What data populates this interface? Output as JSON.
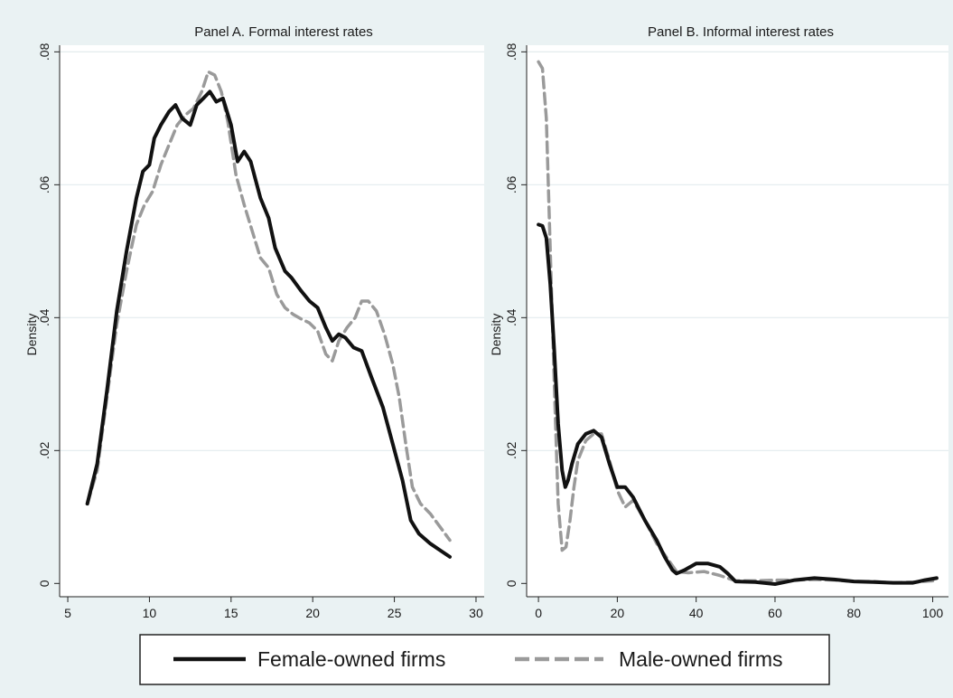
{
  "colors": {
    "background": "#eaf2f3",
    "plot_background": "#ffffff",
    "gridline": "#e3ecee",
    "female_line": "#111111",
    "male_line": "#9a9a9a"
  },
  "legend": {
    "placement": "bottom",
    "entries": [
      {
        "label": "Female-owned firms",
        "style": "solid",
        "color": "#111111"
      },
      {
        "label": "Male-owned firms",
        "style": "dashed",
        "color": "#9a9a9a"
      }
    ]
  },
  "chart_data": [
    {
      "type": "line",
      "title": "Panel A. Formal interest rates",
      "xlabel": "",
      "ylabel": "Density",
      "xlim": [
        4.5,
        30.5
      ],
      "ylim": [
        -0.002,
        0.081
      ],
      "xticks": [
        5,
        10,
        15,
        20,
        25,
        30
      ],
      "yticks": [
        0,
        0.02,
        0.04,
        0.06,
        0.08
      ],
      "ytick_labels": [
        "0",
        ".02",
        ".04",
        ".06",
        ".08"
      ],
      "grid": true,
      "series": [
        {
          "name": "Female-owned firms",
          "x": [
            6.2,
            6.8,
            7.4,
            8.0,
            8.6,
            9.2,
            9.6,
            10.0,
            10.3,
            10.7,
            11.2,
            11.6,
            12.0,
            12.5,
            12.9,
            13.3,
            13.7,
            14.1,
            14.5,
            15.0,
            15.4,
            15.8,
            16.2,
            16.8,
            17.3,
            17.7,
            18.3,
            18.7,
            19.3,
            19.8,
            20.3,
            20.8,
            21.2,
            21.6,
            22.0,
            22.5,
            23.0,
            23.6,
            24.3,
            24.9,
            25.5,
            26.0,
            26.5,
            27.2,
            27.8,
            28.4
          ],
          "y": [
            0.012,
            0.018,
            0.029,
            0.041,
            0.05,
            0.058,
            0.062,
            0.063,
            0.067,
            0.069,
            0.071,
            0.072,
            0.07,
            0.069,
            0.072,
            0.073,
            0.074,
            0.0725,
            0.073,
            0.069,
            0.0635,
            0.065,
            0.0635,
            0.058,
            0.055,
            0.0505,
            0.047,
            0.046,
            0.044,
            0.0425,
            0.0415,
            0.0385,
            0.0365,
            0.0375,
            0.037,
            0.0355,
            0.035,
            0.031,
            0.0265,
            0.021,
            0.0155,
            0.0095,
            0.0075,
            0.006,
            0.005,
            0.004
          ]
        },
        {
          "name": "Male-owned firms",
          "x": [
            6.2,
            6.8,
            7.4,
            8.0,
            8.6,
            9.2,
            9.7,
            10.2,
            10.7,
            11.2,
            11.7,
            12.2,
            12.7,
            13.2,
            13.6,
            14.0,
            14.4,
            14.8,
            15.3,
            15.8,
            16.3,
            16.8,
            17.3,
            17.8,
            18.3,
            18.8,
            19.3,
            19.8,
            20.3,
            20.8,
            21.2,
            21.6,
            22.1,
            22.6,
            23.0,
            23.4,
            23.9,
            24.4,
            24.9,
            25.3,
            25.7,
            26.1,
            26.6,
            27.2,
            27.8,
            28.4
          ],
          "y": [
            0.012,
            0.017,
            0.028,
            0.039,
            0.047,
            0.054,
            0.057,
            0.059,
            0.063,
            0.066,
            0.069,
            0.0705,
            0.0715,
            0.074,
            0.077,
            0.0765,
            0.074,
            0.0695,
            0.0615,
            0.057,
            0.053,
            0.049,
            0.0475,
            0.0435,
            0.0415,
            0.0405,
            0.0398,
            0.0392,
            0.038,
            0.0345,
            0.0335,
            0.0365,
            0.0385,
            0.04,
            0.0425,
            0.0425,
            0.041,
            0.0375,
            0.033,
            0.028,
            0.021,
            0.0145,
            0.012,
            0.0105,
            0.0085,
            0.0065
          ]
        }
      ]
    },
    {
      "type": "line",
      "title": "Panel B. Informal interest rates",
      "xlabel": "",
      "ylabel": "Density",
      "xlim": [
        -3,
        104
      ],
      "ylim": [
        -0.002,
        0.081
      ],
      "xticks": [
        0,
        20,
        40,
        60,
        80,
        100
      ],
      "yticks": [
        0,
        0.02,
        0.04,
        0.06,
        0.08
      ],
      "ytick_labels": [
        "0",
        ".02",
        ".04",
        ".06",
        ".08"
      ],
      "grid": true,
      "series": [
        {
          "name": "Female-owned firms",
          "x": [
            0,
            1,
            2,
            3,
            4,
            5,
            6,
            6.8,
            7.5,
            8.5,
            10,
            12,
            14,
            16,
            18,
            20,
            22,
            24,
            27,
            30,
            32,
            34,
            35,
            37,
            40,
            43,
            46,
            48,
            50,
            55,
            60,
            65,
            70,
            75,
            80,
            85,
            90,
            95,
            98,
            101
          ],
          "y": [
            0.054,
            0.0538,
            0.052,
            0.045,
            0.035,
            0.024,
            0.017,
            0.0145,
            0.0155,
            0.018,
            0.021,
            0.0225,
            0.023,
            0.022,
            0.018,
            0.0145,
            0.0145,
            0.013,
            0.0095,
            0.0065,
            0.004,
            0.002,
            0.0015,
            0.002,
            0.003,
            0.003,
            0.0025,
            0.0015,
            0.0003,
            0.0002,
            -0.0001,
            0.0005,
            0.0008,
            0.0006,
            0.0003,
            0.0002,
            0.0001,
            0.0001,
            0.0005,
            0.0008
          ]
        },
        {
          "name": "Male-owned firms",
          "x": [
            0,
            1,
            2,
            3,
            4,
            5,
            6,
            7,
            8,
            9,
            10,
            12,
            14,
            16,
            18,
            20,
            22,
            24,
            27,
            30,
            33,
            35,
            38,
            42,
            46,
            50,
            55,
            60,
            65,
            70,
            75,
            80,
            85,
            90,
            95,
            100
          ],
          "y": [
            0.0785,
            0.0775,
            0.07,
            0.05,
            0.03,
            0.012,
            0.005,
            0.0055,
            0.0095,
            0.0145,
            0.0185,
            0.0215,
            0.0225,
            0.0225,
            0.0185,
            0.014,
            0.0115,
            0.0125,
            0.0095,
            0.006,
            0.0035,
            0.0018,
            0.0016,
            0.0018,
            0.0012,
            0.0004,
            0.0004,
            0.0005,
            0.0005,
            0.0006,
            0.0005,
            0.0003,
            0.0003,
            0.0001,
            0.0002,
            0.0004
          ]
        }
      ]
    }
  ]
}
